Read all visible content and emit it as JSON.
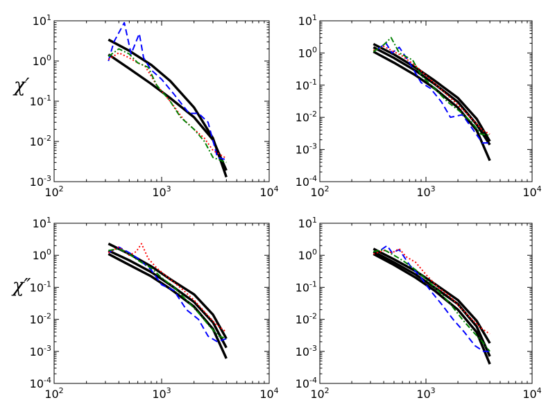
{
  "row_labels": [
    "χ′",
    "χ″"
  ],
  "chart_data": [
    {
      "type": "line",
      "panel": "top-left",
      "xscale": "log",
      "yscale": "log",
      "xlim": [
        100,
        10000
      ],
      "ylim": [
        0.001,
        10
      ],
      "xticks": [
        {
          "base": "10",
          "exp": "2"
        },
        {
          "base": "10",
          "exp": "3"
        },
        {
          "base": "10",
          "exp": "4"
        }
      ],
      "yticks": [
        {
          "base": "10",
          "exp": "-3"
        },
        {
          "base": "10",
          "exp": "-2"
        },
        {
          "base": "10",
          "exp": "-1"
        },
        {
          "base": "10",
          "exp": "0"
        },
        {
          "base": "10",
          "exp": "1"
        }
      ],
      "series": [
        {
          "style": "solid",
          "color": "#000000",
          "x": [
            320,
            500,
            800,
            1200,
            2000,
            3000,
            4000
          ],
          "y": [
            3.4,
            1.8,
            0.8,
            0.32,
            0.07,
            0.012,
            0.0013
          ]
        },
        {
          "style": "solid",
          "color": "#000000",
          "x": [
            320,
            500,
            800,
            1200,
            2000,
            3000,
            4000
          ],
          "y": [
            1.45,
            0.65,
            0.27,
            0.12,
            0.04,
            0.011,
            0.0019
          ]
        },
        {
          "style": "dashed",
          "color": "#0000ff",
          "x": [
            320,
            360,
            450,
            520,
            620,
            680,
            800,
            1000,
            1300,
            1800,
            2200,
            2700,
            3300,
            4000
          ],
          "y": [
            1.0,
            3.0,
            9.0,
            1.5,
            4.8,
            1.2,
            0.6,
            0.35,
            0.15,
            0.05,
            0.05,
            0.03,
            0.004,
            0.0035
          ]
        },
        {
          "style": "dotted",
          "color": "#ff0000",
          "x": [
            320,
            400,
            500,
            600,
            700,
            900,
            1200,
            1600,
            2000,
            2500,
            3000,
            4000
          ],
          "y": [
            1.1,
            1.6,
            1.2,
            0.9,
            0.75,
            0.25,
            0.1,
            0.035,
            0.02,
            0.012,
            0.006,
            0.0038
          ]
        },
        {
          "style": "dashdot",
          "color": "#008000",
          "x": [
            320,
            400,
            500,
            600,
            750,
            900,
            1200,
            1500,
            2000,
            2500,
            3000,
            4000
          ],
          "y": [
            1.3,
            2.0,
            1.5,
            0.9,
            0.7,
            0.25,
            0.1,
            0.04,
            0.02,
            0.01,
            0.004,
            0.003
          ]
        }
      ]
    },
    {
      "type": "line",
      "panel": "top-right",
      "xscale": "log",
      "yscale": "log",
      "xlim": [
        100,
        10000
      ],
      "ylim": [
        0.0001,
        10
      ],
      "xticks": [
        {
          "base": "10",
          "exp": "2"
        },
        {
          "base": "10",
          "exp": "3"
        },
        {
          "base": "10",
          "exp": "4"
        }
      ],
      "yticks": [
        {
          "base": "10",
          "exp": "-4"
        },
        {
          "base": "10",
          "exp": "-3"
        },
        {
          "base": "10",
          "exp": "-2"
        },
        {
          "base": "10",
          "exp": "-1"
        },
        {
          "base": "10",
          "exp": "0"
        },
        {
          "base": "10",
          "exp": "1"
        }
      ],
      "series": [
        {
          "style": "solid",
          "color": "#000000",
          "x": [
            320,
            500,
            800,
            1200,
            2000,
            3000,
            4000
          ],
          "y": [
            1.9,
            0.9,
            0.35,
            0.14,
            0.04,
            0.009,
            0.0018
          ]
        },
        {
          "style": "solid",
          "color": "#000000",
          "x": [
            320,
            500,
            800,
            1200,
            2000,
            3000,
            4000
          ],
          "y": [
            1.5,
            0.7,
            0.28,
            0.11,
            0.03,
            0.006,
            0.0014
          ]
        },
        {
          "style": "solid",
          "color": "#000000",
          "x": [
            320,
            500,
            800,
            1200,
            2000,
            3000,
            4000
          ],
          "y": [
            1.1,
            0.5,
            0.2,
            0.08,
            0.02,
            0.004,
            0.00045
          ]
        },
        {
          "style": "dashed",
          "color": "#0000ff",
          "x": [
            350,
            420,
            480,
            560,
            700,
            900,
            1100,
            1400,
            1700,
            2200,
            2800,
            3400,
            4000
          ],
          "y": [
            1.3,
            2.0,
            1.0,
            1.5,
            0.5,
            0.12,
            0.08,
            0.03,
            0.01,
            0.012,
            0.004,
            0.0016,
            0.0016
          ]
        },
        {
          "style": "dotted",
          "color": "#ff0000",
          "x": [
            320,
            400,
            500,
            600,
            800,
            1000,
            1300,
            1700,
            2200,
            2800,
            3400,
            4000
          ],
          "y": [
            1.2,
            1.6,
            1.1,
            0.8,
            0.4,
            0.2,
            0.09,
            0.04,
            0.018,
            0.008,
            0.004,
            0.003
          ]
        },
        {
          "style": "dashdot",
          "color": "#008000",
          "x": [
            320,
            400,
            470,
            560,
            750,
            900,
            1200,
            1600,
            2100,
            2700,
            3300,
            4000
          ],
          "y": [
            1.1,
            1.8,
            3.0,
            1.0,
            0.6,
            0.2,
            0.08,
            0.03,
            0.015,
            0.007,
            0.003,
            0.0028
          ]
        }
      ]
    },
    {
      "type": "line",
      "panel": "bottom-left",
      "xscale": "log",
      "yscale": "log",
      "xlim": [
        100,
        10000
      ],
      "ylim": [
        0.0001,
        10
      ],
      "xticks": [
        {
          "base": "10",
          "exp": "2"
        },
        {
          "base": "10",
          "exp": "3"
        },
        {
          "base": "10",
          "exp": "4"
        }
      ],
      "yticks": [
        {
          "base": "10",
          "exp": "-4"
        },
        {
          "base": "10",
          "exp": "-3"
        },
        {
          "base": "10",
          "exp": "-2"
        },
        {
          "base": "10",
          "exp": "-1"
        },
        {
          "base": "10",
          "exp": "0"
        },
        {
          "base": "10",
          "exp": "1"
        }
      ],
      "series": [
        {
          "style": "solid",
          "color": "#000000",
          "x": [
            320,
            500,
            800,
            1200,
            2000,
            3000,
            4000
          ],
          "y": [
            2.3,
            1.1,
            0.45,
            0.18,
            0.06,
            0.014,
            0.0025
          ]
        },
        {
          "style": "solid",
          "color": "#000000",
          "x": [
            320,
            500,
            800,
            1200,
            2000,
            3000,
            4000
          ],
          "y": [
            1.4,
            0.7,
            0.3,
            0.12,
            0.035,
            0.008,
            0.0013
          ]
        },
        {
          "style": "solid",
          "color": "#000000",
          "x": [
            320,
            500,
            800,
            1200,
            2000,
            3000,
            4000
          ],
          "y": [
            1.1,
            0.5,
            0.22,
            0.09,
            0.025,
            0.005,
            0.0006
          ]
        },
        {
          "style": "dashed",
          "color": "#0000ff",
          "x": [
            320,
            400,
            500,
            600,
            800,
            1000,
            1300,
            1700,
            2200,
            2700,
            3300,
            4000
          ],
          "y": [
            1.2,
            1.8,
            1.2,
            0.8,
            0.35,
            0.12,
            0.08,
            0.02,
            0.01,
            0.003,
            0.002,
            0.0025
          ]
        },
        {
          "style": "dotted",
          "color": "#ff0000",
          "x": [
            320,
            400,
            500,
            580,
            650,
            750,
            900,
            1200,
            1600,
            2000,
            2600,
            3200,
            4000
          ],
          "y": [
            1.2,
            1.8,
            1.0,
            1.3,
            2.3,
            0.8,
            0.4,
            0.18,
            0.08,
            0.04,
            0.015,
            0.007,
            0.004
          ]
        },
        {
          "style": "dashdot",
          "color": "#008000",
          "x": [
            320,
            400,
            500,
            600,
            800,
            1000,
            1300,
            1700,
            2200,
            2800,
            3400,
            4000
          ],
          "y": [
            1.4,
            1.6,
            1.1,
            0.7,
            0.4,
            0.2,
            0.1,
            0.04,
            0.016,
            0.006,
            0.003,
            0.0025
          ]
        }
      ]
    },
    {
      "type": "line",
      "panel": "bottom-right",
      "xscale": "log",
      "yscale": "log",
      "xlim": [
        100,
        10000
      ],
      "ylim": [
        0.0001,
        10
      ],
      "xticks": [
        {
          "base": "10",
          "exp": "2"
        },
        {
          "base": "10",
          "exp": "3"
        },
        {
          "base": "10",
          "exp": "4"
        }
      ],
      "yticks": [
        {
          "base": "10",
          "exp": "-4"
        },
        {
          "base": "10",
          "exp": "-3"
        },
        {
          "base": "10",
          "exp": "-2"
        },
        {
          "base": "10",
          "exp": "-1"
        },
        {
          "base": "10",
          "exp": "0"
        },
        {
          "base": "10",
          "exp": "1"
        }
      ],
      "series": [
        {
          "style": "solid",
          "color": "#000000",
          "x": [
            320,
            500,
            800,
            1200,
            2000,
            3000,
            4000
          ],
          "y": [
            1.6,
            0.75,
            0.32,
            0.13,
            0.04,
            0.009,
            0.0018
          ]
        },
        {
          "style": "solid",
          "color": "#000000",
          "x": [
            320,
            500,
            800,
            1200,
            2000,
            3000,
            4000
          ],
          "y": [
            1.3,
            0.6,
            0.25,
            0.1,
            0.03,
            0.006,
            0.0007
          ]
        },
        {
          "style": "solid",
          "color": "#000000",
          "x": [
            320,
            500,
            800,
            1200,
            2000,
            3000,
            4000
          ],
          "y": [
            1.1,
            0.5,
            0.2,
            0.08,
            0.02,
            0.004,
            0.0004
          ]
        },
        {
          "style": "dashed",
          "color": "#0000ff",
          "x": [
            380,
            430,
            480,
            560,
            700,
            900,
            1100,
            1400,
            1800,
            2300,
            2900,
            3500,
            4000
          ],
          "y": [
            1.5,
            2.0,
            1.2,
            1.5,
            0.5,
            0.2,
            0.08,
            0.03,
            0.01,
            0.004,
            0.0015,
            0.001,
            0.001
          ]
        },
        {
          "style": "dotted",
          "color": "#ff0000",
          "x": [
            320,
            400,
            480,
            560,
            650,
            800,
            1000,
            1300,
            1700,
            2200,
            2800,
            3400,
            4000
          ],
          "y": [
            1.1,
            1.4,
            1.2,
            1.6,
            0.9,
            0.6,
            0.25,
            0.1,
            0.05,
            0.02,
            0.009,
            0.005,
            0.0035
          ]
        },
        {
          "style": "dashdot",
          "color": "#008000",
          "x": [
            320,
            400,
            500,
            600,
            800,
            1000,
            1300,
            1700,
            2200,
            2800,
            3400,
            4000
          ],
          "y": [
            1.3,
            1.5,
            1.0,
            0.7,
            0.35,
            0.18,
            0.08,
            0.03,
            0.01,
            0.004,
            0.002,
            0.001
          ]
        }
      ]
    }
  ]
}
